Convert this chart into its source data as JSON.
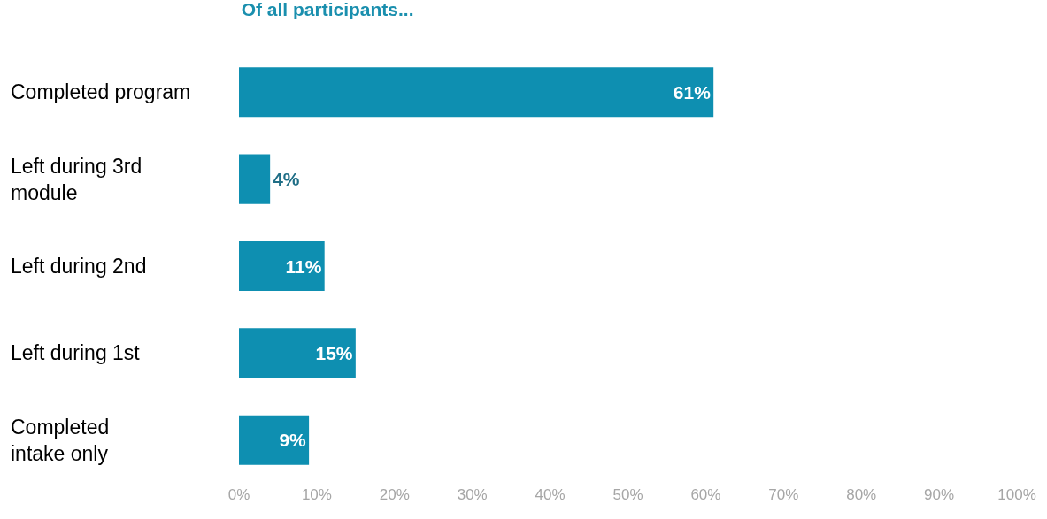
{
  "chart_data": {
    "type": "bar",
    "orientation": "horizontal",
    "title": "Of all participants...",
    "categories": [
      "Completed program",
      "Left during 3rd\nmodule",
      "Left during 2nd",
      "Left during 1st",
      "Completed\nintake only"
    ],
    "values": [
      61,
      4,
      11,
      15,
      9
    ],
    "value_labels": [
      "61%",
      "4%",
      "11%",
      "15%",
      "9%"
    ],
    "color": "#0e8fb1",
    "xlim": [
      0,
      100
    ],
    "xticks": [
      {
        "value": 0,
        "label": "0%"
      },
      {
        "value": 10,
        "label": "10%"
      },
      {
        "value": 20,
        "label": "20%"
      },
      {
        "value": 30,
        "label": "30%"
      },
      {
        "value": 40,
        "label": "40%"
      },
      {
        "value": 50,
        "label": "50%"
      },
      {
        "value": 60,
        "label": "60%"
      },
      {
        "value": 70,
        "label": "70%"
      },
      {
        "value": 80,
        "label": "80%"
      },
      {
        "value": 90,
        "label": "90%"
      },
      {
        "value": 100,
        "label": "100%"
      }
    ],
    "legend": false
  }
}
